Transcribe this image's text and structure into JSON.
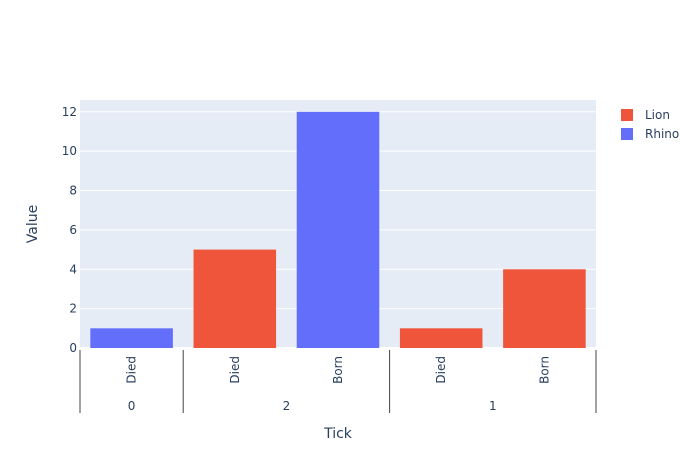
{
  "chart_data": {
    "type": "bar",
    "xlabel": "Tick",
    "ylabel": "Value",
    "ylim": [
      0,
      12.6
    ],
    "yticks": [
      0,
      2,
      4,
      6,
      8,
      10,
      12
    ],
    "grid": true,
    "legend_position": "top-right",
    "groups": [
      {
        "label": "0",
        "categories": [
          "Died"
        ]
      },
      {
        "label": "2",
        "categories": [
          "Died",
          "Born"
        ]
      },
      {
        "label": "1",
        "categories": [
          "Died",
          "Born"
        ]
      }
    ],
    "series": [
      {
        "name": "Lion",
        "color": "#EF553B",
        "points": [
          {
            "group": "2",
            "category": "Died",
            "value": 5
          },
          {
            "group": "1",
            "category": "Died",
            "value": 1
          },
          {
            "group": "1",
            "category": "Born",
            "value": 4
          }
        ]
      },
      {
        "name": "Rhino",
        "color": "#636EFA",
        "points": [
          {
            "group": "0",
            "category": "Died",
            "value": 1
          },
          {
            "group": "2",
            "category": "Born",
            "value": 12
          }
        ]
      }
    ]
  }
}
